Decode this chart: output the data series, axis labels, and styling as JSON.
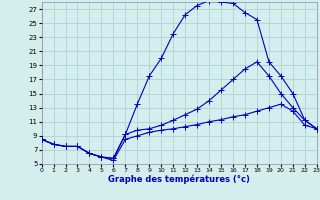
{
  "xlabel": "Graphe des températures (°c)",
  "bg_color": "#d4eeee",
  "grid_color": "#a8cccc",
  "line_color": "#0000bb",
  "spine_color": "#8888aa",
  "xlim": [
    0,
    23
  ],
  "ylim": [
    5,
    28
  ],
  "xticks": [
    0,
    1,
    2,
    3,
    4,
    5,
    6,
    7,
    8,
    9,
    10,
    11,
    12,
    13,
    14,
    15,
    16,
    17,
    18,
    19,
    20,
    21,
    22,
    23
  ],
  "yticks": [
    5,
    7,
    9,
    11,
    13,
    15,
    17,
    19,
    21,
    23,
    25,
    27
  ],
  "curve_high_x": [
    0,
    1,
    2,
    3,
    4,
    5,
    6,
    7,
    8,
    9,
    10,
    11,
    12,
    13,
    14,
    15,
    16,
    17,
    18,
    19,
    20,
    21,
    22,
    23
  ],
  "curve_high_y": [
    8.5,
    7.8,
    7.5,
    7.5,
    6.5,
    6.0,
    5.8,
    9.2,
    13.5,
    17.5,
    20.0,
    23.5,
    26.2,
    27.5,
    28.2,
    28.0,
    27.8,
    26.5,
    25.5,
    19.5,
    17.5,
    15.0,
    11.2,
    10.0
  ],
  "curve_mid_x": [
    0,
    1,
    2,
    3,
    4,
    5,
    6,
    7,
    8,
    9,
    10,
    11,
    12,
    13,
    14,
    15,
    16,
    17,
    18,
    19,
    20,
    21,
    22,
    23
  ],
  "curve_mid_y": [
    8.5,
    7.8,
    7.5,
    7.5,
    6.5,
    6.0,
    5.8,
    9.2,
    9.8,
    10.0,
    10.5,
    11.2,
    12.0,
    12.8,
    14.0,
    15.5,
    17.0,
    18.5,
    19.5,
    17.5,
    15.0,
    13.0,
    11.2,
    10.0
  ],
  "curve_low_x": [
    0,
    1,
    2,
    3,
    4,
    5,
    6,
    7,
    8,
    9,
    10,
    11,
    12,
    13,
    14,
    15,
    16,
    17,
    18,
    19,
    20,
    21,
    22,
    23
  ],
  "curve_low_y": [
    8.5,
    7.8,
    7.5,
    7.5,
    6.5,
    6.0,
    5.5,
    8.5,
    9.0,
    9.5,
    9.8,
    10.0,
    10.3,
    10.6,
    11.0,
    11.3,
    11.7,
    12.0,
    12.5,
    13.0,
    13.5,
    12.5,
    10.5,
    10.0
  ],
  "xlabel_fontsize": 6,
  "tick_fontsize_x": 4.5,
  "tick_fontsize_y": 5,
  "lw": 0.8,
  "ms": 2.0
}
